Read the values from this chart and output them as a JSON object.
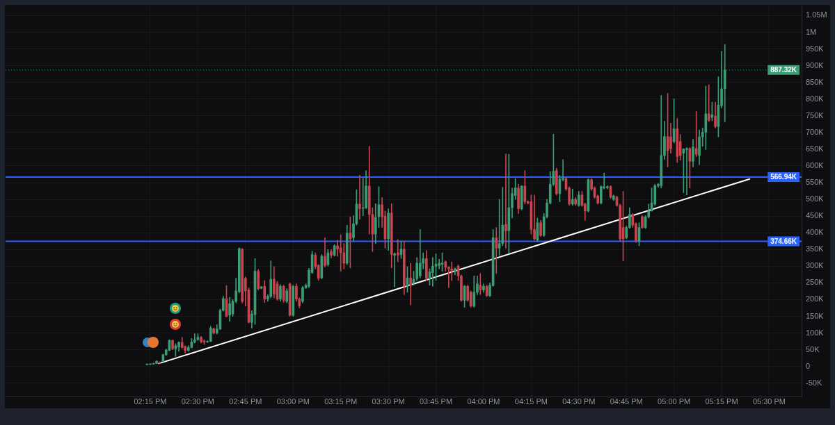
{
  "chart_data": {
    "type": "candlestick",
    "x": [
      14.233,
      14.25,
      14.267,
      14.283,
      14.3,
      14.317,
      14.333,
      14.35,
      14.367,
      14.383,
      14.4,
      14.417,
      14.433,
      14.45,
      14.467,
      14.483,
      14.5,
      14.517,
      14.533,
      14.55,
      14.567,
      14.583,
      14.6,
      14.617,
      14.633,
      14.65,
      14.667,
      14.683,
      14.7,
      14.717,
      14.733,
      14.75,
      14.767,
      14.783,
      14.8,
      14.817,
      14.833,
      14.85,
      14.867,
      14.883,
      14.9,
      14.917,
      14.933,
      14.95,
      14.967,
      14.983,
      15,
      15.017,
      15.033,
      15.05,
      15.067,
      15.083,
      15.1,
      15.117,
      15.133,
      15.15,
      15.167,
      15.183,
      15.2,
      15.217,
      15.233,
      15.25,
      15.267,
      15.283,
      15.3,
      15.317,
      15.333,
      15.35,
      15.367,
      15.383,
      15.4,
      15.417,
      15.433,
      15.45,
      15.467,
      15.483,
      15.5,
      15.517,
      15.533,
      15.55,
      15.567,
      15.583,
      15.6,
      15.617,
      15.633,
      15.65,
      15.667,
      15.683,
      15.7,
      15.717,
      15.733,
      15.75,
      15.767,
      15.783,
      15.8,
      15.817,
      15.833,
      15.85,
      15.867,
      15.883,
      15.9,
      15.917,
      15.933,
      15.95,
      15.967,
      15.983,
      16,
      16.017,
      16.033,
      16.05,
      16.067,
      16.083,
      16.1,
      16.117,
      16.133,
      16.15,
      16.167,
      16.183,
      16.2,
      16.217,
      16.233,
      16.25,
      16.267,
      16.283,
      16.3,
      16.317,
      16.333,
      16.35,
      16.367,
      16.383,
      16.4,
      16.417,
      16.433,
      16.45,
      16.467,
      16.483,
      16.5,
      16.517,
      16.533,
      16.55,
      16.567,
      16.583,
      16.6,
      16.617,
      16.633,
      16.65,
      16.667,
      16.683,
      16.7,
      16.717,
      16.733,
      16.75,
      16.767,
      16.783,
      16.8,
      16.817,
      16.833,
      16.85,
      16.867,
      16.883,
      16.9,
      16.917,
      16.933,
      16.95,
      16.967,
      16.983,
      17,
      17.017,
      17.033,
      17.05,
      17.067,
      17.083,
      17.1,
      17.117,
      17.133,
      17.15,
      17.167,
      17.183,
      17.2,
      17.217,
      17.233,
      17.25,
      17.267
    ],
    "ohlc": [
      [
        5000,
        8000,
        5000,
        7000
      ],
      [
        6000,
        7000,
        5000,
        7000
      ],
      [
        7000,
        10000,
        7000,
        9000
      ],
      [
        9000,
        17000,
        9000,
        16000
      ],
      [
        12000,
        14000,
        9000,
        10000
      ],
      [
        15000,
        37000,
        14000,
        35000
      ],
      [
        35000,
        52000,
        33000,
        49000
      ],
      [
        48000,
        80000,
        47000,
        78000
      ],
      [
        78000,
        79000,
        50000,
        53000
      ],
      [
        53000,
        68000,
        30000,
        62000
      ],
      [
        58000,
        74000,
        45000,
        72000
      ],
      [
        72000,
        87000,
        55000,
        57000
      ],
      [
        60000,
        62000,
        40000,
        48000
      ],
      [
        48000,
        62000,
        45000,
        57000
      ],
      [
        57000,
        84000,
        55000,
        73000
      ],
      [
        73000,
        98000,
        70000,
        80000
      ],
      [
        80000,
        98000,
        78000,
        87000
      ],
      [
        87000,
        90000,
        70000,
        74000
      ],
      [
        76000,
        80000,
        66000,
        73000
      ],
      [
        73000,
        77000,
        72000,
        75000
      ],
      [
        75000,
        120000,
        74000,
        115000
      ],
      [
        113000,
        115000,
        97000,
        100000
      ],
      [
        100000,
        125000,
        97000,
        112000
      ],
      [
        112000,
        172000,
        110000,
        168000
      ],
      [
        168000,
        210000,
        165000,
        203000
      ],
      [
        203000,
        242000,
        148000,
        150000
      ],
      [
        154000,
        207000,
        135000,
        188000
      ],
      [
        157000,
        200000,
        150000,
        195000
      ],
      [
        195000,
        264000,
        190000,
        226000
      ],
      [
        224000,
        355000,
        220000,
        353000
      ],
      [
        351000,
        353000,
        190000,
        195000
      ],
      [
        264000,
        268000,
        181000,
        226000
      ],
      [
        229000,
        235000,
        130000,
        132000
      ],
      [
        132000,
        167000,
        115000,
        157000
      ],
      [
        155000,
        323000,
        126000,
        285000
      ],
      [
        285000,
        290000,
        229000,
        233000
      ],
      [
        234000,
        240000,
        232000,
        238000
      ],
      [
        240000,
        257000,
        191000,
        202000
      ],
      [
        202000,
        215000,
        195000,
        210000
      ],
      [
        209000,
        316000,
        205000,
        261000
      ],
      [
        261000,
        299000,
        205000,
        216000
      ],
      [
        247000,
        255000,
        198000,
        202000
      ],
      [
        202000,
        245000,
        195000,
        240000
      ],
      [
        240000,
        243000,
        192000,
        198000
      ],
      [
        195000,
        233000,
        190000,
        226000
      ],
      [
        247000,
        250000,
        150000,
        153000
      ],
      [
        153000,
        243000,
        150000,
        240000
      ],
      [
        240000,
        247000,
        195000,
        202000
      ],
      [
        202000,
        205000,
        175000,
        181000
      ],
      [
        195000,
        240000,
        190000,
        236000
      ],
      [
        236000,
        247000,
        233000,
        243000
      ],
      [
        240000,
        294000,
        236000,
        288000
      ],
      [
        281000,
        345000,
        278000,
        335000
      ],
      [
        333000,
        340000,
        292000,
        299000
      ],
      [
        302000,
        305000,
        258000,
        264000
      ],
      [
        265000,
        335000,
        262000,
        330000
      ],
      [
        330000,
        385000,
        298000,
        302000
      ],
      [
        305000,
        350000,
        300000,
        340000
      ],
      [
        344000,
        350000,
        325000,
        333000
      ],
      [
        333000,
        365000,
        330000,
        361000
      ],
      [
        361000,
        378000,
        330000,
        351000
      ],
      [
        355000,
        394000,
        285000,
        340000
      ],
      [
        340000,
        368000,
        292000,
        309000
      ],
      [
        309000,
        423000,
        305000,
        399000
      ],
      [
        399000,
        448000,
        295000,
        382000
      ],
      [
        385000,
        451000,
        375000,
        427000
      ],
      [
        427000,
        529000,
        423000,
        486000
      ],
      [
        486000,
        572000,
        441000,
        472000
      ],
      [
        473000,
        563000,
        451000,
        475000
      ],
      [
        475000,
        586000,
        472000,
        540000
      ],
      [
        540000,
        659000,
        396000,
        455000
      ],
      [
        455000,
        475000,
        344000,
        396000
      ],
      [
        396000,
        487000,
        368000,
        446000
      ],
      [
        448000,
        538000,
        416000,
        484000
      ],
      [
        484000,
        505000,
        416000,
        448000
      ],
      [
        450000,
        465000,
        354000,
        382000
      ],
      [
        382000,
        472000,
        347000,
        459000
      ],
      [
        459000,
        487000,
        295000,
        335000
      ],
      [
        333000,
        340000,
        238000,
        337000
      ],
      [
        340000,
        380000,
        313000,
        333000
      ],
      [
        335000,
        375000,
        323000,
        351000
      ],
      [
        351000,
        376000,
        215000,
        240000
      ],
      [
        240000,
        299000,
        222000,
        265000
      ],
      [
        265000,
        309000,
        184000,
        243000
      ],
      [
        250000,
        285000,
        243000,
        261000
      ],
      [
        263000,
        326000,
        257000,
        309000
      ],
      [
        271000,
        410000,
        265000,
        309000
      ],
      [
        309000,
        340000,
        292000,
        323000
      ],
      [
        323000,
        347000,
        257000,
        264000
      ],
      [
        263000,
        292000,
        243000,
        283000
      ],
      [
        281000,
        326000,
        240000,
        300000
      ],
      [
        300000,
        337000,
        257000,
        306000
      ],
      [
        302000,
        321000,
        292000,
        309000
      ],
      [
        306000,
        340000,
        285000,
        309000
      ],
      [
        313000,
        316000,
        285000,
        297000
      ],
      [
        297000,
        299000,
        236000,
        292000
      ],
      [
        292000,
        313000,
        257000,
        285000
      ],
      [
        285000,
        295000,
        274000,
        292000
      ],
      [
        300000,
        304000,
        257000,
        271000
      ],
      [
        271000,
        274000,
        195000,
        198000
      ],
      [
        198000,
        243000,
        177000,
        240000
      ],
      [
        240000,
        243000,
        195000,
        198000
      ],
      [
        222000,
        226000,
        177000,
        181000
      ],
      [
        181000,
        271000,
        177000,
        222000
      ],
      [
        222000,
        271000,
        215000,
        247000
      ],
      [
        243000,
        278000,
        215000,
        229000
      ],
      [
        229000,
        247000,
        222000,
        240000
      ],
      [
        240000,
        243000,
        209000,
        212000
      ],
      [
        212000,
        250000,
        209000,
        243000
      ],
      [
        242000,
        410000,
        240000,
        385000
      ],
      [
        385000,
        416000,
        278000,
        354000
      ],
      [
        354000,
        500000,
        333000,
        368000
      ],
      [
        368000,
        536000,
        361000,
        423000
      ],
      [
        425000,
        636000,
        354000,
        406000
      ],
      [
        406000,
        635000,
        340000,
        475000
      ],
      [
        475000,
        534000,
        444000,
        517000
      ],
      [
        512000,
        562000,
        500000,
        534000
      ],
      [
        534000,
        545000,
        458000,
        472000
      ],
      [
        472000,
        541000,
        468000,
        540000
      ],
      [
        540000,
        586000,
        486000,
        493000
      ],
      [
        493000,
        496000,
        486000,
        489000
      ],
      [
        493000,
        513000,
        396000,
        410000
      ],
      [
        410000,
        513000,
        378000,
        382000
      ],
      [
        378000,
        444000,
        375000,
        430000
      ],
      [
        430000,
        437000,
        389000,
        392000
      ],
      [
        392000,
        458000,
        389000,
        448000
      ],
      [
        448000,
        500000,
        444000,
        489000
      ],
      [
        489000,
        583000,
        486000,
        545000
      ],
      [
        545000,
        695000,
        541000,
        584000
      ],
      [
        586000,
        593000,
        513000,
        517000
      ],
      [
        517000,
        572000,
        493000,
        561000
      ],
      [
        559000,
        619000,
        555000,
        563000
      ],
      [
        562000,
        565000,
        527000,
        531000
      ],
      [
        534000,
        538000,
        482000,
        486000
      ],
      [
        486000,
        531000,
        482000,
        500000
      ],
      [
        500000,
        505000,
        482000,
        486000
      ],
      [
        482000,
        524000,
        479000,
        513000
      ],
      [
        513000,
        524000,
        479000,
        482000
      ],
      [
        486000,
        489000,
        437000,
        465000
      ],
      [
        465000,
        562000,
        462000,
        559000
      ],
      [
        559000,
        562000,
        527000,
        531000
      ],
      [
        534000,
        538000,
        503000,
        507000
      ],
      [
        510000,
        513000,
        486000,
        489000
      ],
      [
        489000,
        541000,
        486000,
        538000
      ],
      [
        534000,
        579000,
        531000,
        538000
      ],
      [
        535000,
        541000,
        531000,
        538000
      ],
      [
        538000,
        541000,
        503000,
        507000
      ],
      [
        500000,
        513000,
        496000,
        510000
      ],
      [
        507000,
        510000,
        479000,
        482000
      ],
      [
        482000,
        486000,
        375000,
        382000
      ],
      [
        416000,
        524000,
        316000,
        382000
      ],
      [
        385000,
        420000,
        382000,
        416000
      ],
      [
        416000,
        475000,
        413000,
        455000
      ],
      [
        455000,
        458000,
        416000,
        423000
      ],
      [
        427000,
        430000,
        371000,
        375000
      ],
      [
        375000,
        430000,
        361000,
        416000
      ],
      [
        448000,
        451000,
        413000,
        416000
      ],
      [
        416000,
        451000,
        413000,
        448000
      ],
      [
        448000,
        486000,
        444000,
        465000
      ],
      [
        465000,
        534000,
        465000,
        489000
      ],
      [
        486000,
        545000,
        482000,
        541000
      ],
      [
        541000,
        548000,
        536000,
        545000
      ],
      [
        541000,
        811000,
        534000,
        631000
      ],
      [
        631000,
        734000,
        620000,
        688000
      ],
      [
        688000,
        817000,
        597000,
        646000
      ],
      [
        687000,
        728000,
        638000,
        652000
      ],
      [
        673000,
        801000,
        669000,
        711000
      ],
      [
        711000,
        742000,
        610000,
        628000
      ],
      [
        673000,
        694000,
        617000,
        631000
      ],
      [
        638000,
        652000,
        520000,
        651000
      ],
      [
        649000,
        655000,
        513000,
        652000
      ],
      [
        652000,
        655000,
        534000,
        614000
      ],
      [
        614000,
        680000,
        597000,
        657000
      ],
      [
        652000,
        763000,
        628000,
        635000
      ],
      [
        631000,
        708000,
        604000,
        687000
      ],
      [
        687000,
        714000,
        659000,
        701000
      ],
      [
        701000,
        839000,
        649000,
        756000
      ],
      [
        756000,
        843000,
        733000,
        737000
      ],
      [
        746000,
        791000,
        735000,
        753000
      ],
      [
        749000,
        791000,
        714000,
        718000
      ],
      [
        718000,
        867000,
        687000,
        782000
      ],
      [
        780000,
        943000,
        773000,
        831000
      ],
      [
        831000,
        964000,
        732000,
        887000
      ]
    ],
    "colors": [
      "#3b9d74",
      "#3b9d74",
      "#3b9d74",
      "#3b9d74",
      "#c8454f",
      "#3b9d74",
      "#3b9d74",
      "#3b9d74",
      "#c8454f",
      "#3b9d74",
      "#3b9d74",
      "#c8454f",
      "#c8454f",
      "#3b9d74",
      "#3b9d74",
      "#3b9d74",
      "#3b9d74",
      "#c8454f",
      "#c8454f",
      "#3b9d74",
      "#3b9d74",
      "#c8454f",
      "#3b9d74",
      "#3b9d74",
      "#3b9d74",
      "#c8454f",
      "#3b9d74",
      "#3b9d74",
      "#3b9d74",
      "#3b9d74",
      "#c8454f",
      "#c8454f",
      "#c8454f",
      "#3b9d74",
      "#3b9d74",
      "#c8454f",
      "#3b9d74",
      "#c8454f",
      "#3b9d74",
      "#3b9d74",
      "#c8454f",
      "#c8454f",
      "#3b9d74",
      "#c8454f",
      "#3b9d74",
      "#c8454f",
      "#3b9d74",
      "#c8454f",
      "#c8454f",
      "#3b9d74",
      "#3b9d74",
      "#3b9d74",
      "#3b9d74",
      "#c8454f",
      "#c8454f",
      "#3b9d74",
      "#c8454f",
      "#3b9d74",
      "#c8454f",
      "#3b9d74",
      "#c8454f",
      "#c8454f",
      "#c8454f",
      "#3b9d74",
      "#c8454f",
      "#3b9d74",
      "#3b9d74",
      "#c8454f",
      "#3b9d74",
      "#3b9d74",
      "#c8454f",
      "#c8454f",
      "#3b9d74",
      "#3b9d74",
      "#c8454f",
      "#c8454f",
      "#3b9d74",
      "#c8454f",
      "#3b9d74",
      "#c8454f",
      "#3b9d74",
      "#c8454f",
      "#3b9d74",
      "#c8454f",
      "#3b9d74",
      "#3b9d74",
      "#3b9d74",
      "#3b9d74",
      "#c8454f",
      "#3b9d74",
      "#3b9d74",
      "#3b9d74",
      "#3b9d74",
      "#3b9d74",
      "#c8454f",
      "#c8454f",
      "#c8454f",
      "#3b9d74",
      "#c8454f",
      "#c8454f",
      "#3b9d74",
      "#c8454f",
      "#c8454f",
      "#3b9d74",
      "#3b9d74",
      "#c8454f",
      "#3b9d74",
      "#c8454f",
      "#3b9d74",
      "#3b9d74",
      "#c8454f",
      "#3b9d74",
      "#3b9d74",
      "#c8454f",
      "#3b9d74",
      "#3b9d74",
      "#3b9d74",
      "#c8454f",
      "#3b9d74",
      "#c8454f",
      "#c8454f",
      "#c8454f",
      "#c8454f",
      "#3b9d74",
      "#c8454f",
      "#3b9d74",
      "#3b9d74",
      "#3b9d74",
      "#3b9d74",
      "#c8454f",
      "#3b9d74",
      "#3b9d74",
      "#c8454f",
      "#c8454f",
      "#3b9d74",
      "#c8454f",
      "#3b9d74",
      "#c8454f",
      "#c8454f",
      "#3b9d74",
      "#c8454f",
      "#c8454f",
      "#c8454f",
      "#3b9d74",
      "#3b9d74",
      "#3b9d74",
      "#c8454f",
      "#3b9d74",
      "#c8454f",
      "#c8454f",
      "#c8454f",
      "#3b9d74",
      "#3b9d74",
      "#c8454f",
      "#c8454f",
      "#3b9d74",
      "#c8454f",
      "#3b9d74",
      "#3b9d74",
      "#3b9d74",
      "#3b9d74",
      "#3b9d74",
      "#3b9d74",
      "#3b9d74",
      "#c8454f",
      "#c8454f",
      "#3b9d74",
      "#c8454f",
      "#c8454f",
      "#3b9d74",
      "#3b9d74",
      "#c8454f",
      "#3b9d74",
      "#c8454f",
      "#3b9d74",
      "#3b9d74",
      "#3b9d74",
      "#c8454f",
      "#3b9d74",
      "#c8454f",
      "#3b9d74",
      "#3b9d74",
      "#3b9d74"
    ],
    "series": [
      {
        "type": "line",
        "x": [
          14.295,
          17.397
        ],
        "values": [
          9000,
          561000
        ],
        "color": "#ffffff"
      }
    ],
    "xlim": [
      13.49,
      17.67
    ],
    "xticks": [
      {
        "value": 14.25,
        "label": "02:15 PM"
      },
      {
        "value": 14.5,
        "label": "02:30 PM"
      },
      {
        "value": 14.75,
        "label": "02:45 PM"
      },
      {
        "value": 15,
        "label": "03:00 PM"
      },
      {
        "value": 15.25,
        "label": "03:15 PM"
      },
      {
        "value": 15.5,
        "label": "03:30 PM"
      },
      {
        "value": 15.75,
        "label": "03:45 PM"
      },
      {
        "value": 16,
        "label": "04:00 PM"
      },
      {
        "value": 16.25,
        "label": "04:15 PM"
      },
      {
        "value": 16.5,
        "label": "04:30 PM"
      },
      {
        "value": 16.75,
        "label": "04:45 PM"
      },
      {
        "value": 17,
        "label": "05:00 PM"
      },
      {
        "value": 17.25,
        "label": "05:15 PM"
      },
      {
        "value": 17.5,
        "label": "05:30 PM"
      }
    ],
    "ylim": [
      -90000,
      1080000
    ],
    "yticks": [
      {
        "value": -50000,
        "label": "-50K"
      },
      0,
      {
        "value": 50000,
        "label": "50K"
      },
      {
        "value": 100000,
        "label": "100K"
      },
      {
        "value": 150000,
        "label": "150K"
      },
      {
        "value": 200000,
        "label": "200K"
      },
      {
        "value": 250000,
        "label": "250K"
      },
      {
        "value": 300000,
        "label": "300K"
      },
      {
        "value": 350000,
        "label": "350K"
      },
      {
        "value": 400000,
        "label": "400K"
      },
      {
        "value": 450000,
        "label": "450K"
      },
      {
        "value": 500000,
        "label": "500K"
      },
      {
        "value": 550000,
        "label": "550K"
      },
      {
        "value": 600000,
        "label": "600K"
      },
      {
        "value": 650000,
        "label": "650K"
      },
      {
        "value": 700000,
        "label": "700K"
      },
      {
        "value": 750000,
        "label": "750K"
      },
      {
        "value": 800000,
        "label": "800K"
      },
      {
        "value": 850000,
        "label": "850K"
      },
      {
        "value": 900000,
        "label": "900K"
      },
      {
        "value": 950000,
        "label": "950K"
      },
      {
        "value": 1000000,
        "label": "1M"
      },
      {
        "value": 1050000,
        "label": "1.05M"
      }
    ],
    "grid": true,
    "ref_lines": [
      {
        "axis": "y",
        "value": 566940,
        "label": "566.94K",
        "color": "#2962ff"
      },
      {
        "axis": "y",
        "value": 374660,
        "label": "374.66K",
        "color": "#2962ff"
      },
      {
        "axis": "y",
        "value": 887320,
        "label": "887.32K",
        "color": "#3b9d74",
        "line_style": "dotted"
      }
    ]
  }
}
